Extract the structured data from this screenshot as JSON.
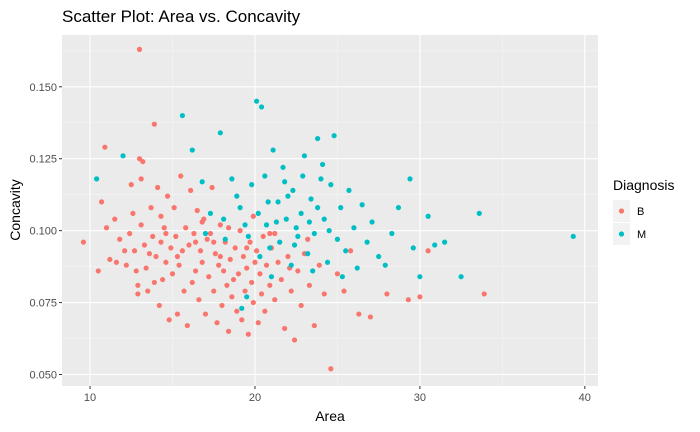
{
  "chart_data": {
    "type": "scatter",
    "title": "Scatter Plot: Area vs. Concavity",
    "xlabel": "Area",
    "ylabel": "Concavity",
    "xlim": [
      8.3,
      40.8
    ],
    "ylim": [
      0.046,
      0.168
    ],
    "x_ticks": [
      10,
      20,
      30,
      40
    ],
    "y_ticks": [
      0.05,
      0.075,
      0.1,
      0.125,
      0.15
    ],
    "x_tick_labels": [
      "10",
      "20",
      "30",
      "40"
    ],
    "y_tick_labels": [
      "0.050",
      "0.075",
      "0.100",
      "0.125",
      "0.150"
    ],
    "grid": true,
    "background": "#ebebeb",
    "legend": {
      "title": "Diagnosis",
      "placement": "right"
    },
    "series": [
      {
        "name": "B",
        "color": "#f8766d",
        "points": [
          [
            9.6,
            0.096
          ],
          [
            10.5,
            0.086
          ],
          [
            10.7,
            0.11
          ],
          [
            10.9,
            0.129
          ],
          [
            11.0,
            0.101
          ],
          [
            11.2,
            0.09
          ],
          [
            11.5,
            0.104
          ],
          [
            11.8,
            0.097
          ],
          [
            12.1,
            0.093
          ],
          [
            12.2,
            0.088
          ],
          [
            12.4,
            0.099
          ],
          [
            12.5,
            0.116
          ],
          [
            12.6,
            0.106
          ],
          [
            12.7,
            0.093
          ],
          [
            12.8,
            0.086
          ],
          [
            12.9,
            0.081
          ],
          [
            13.0,
            0.163
          ],
          [
            13.0,
            0.125
          ],
          [
            13.1,
            0.118
          ],
          [
            13.1,
            0.102
          ],
          [
            13.2,
            0.124
          ],
          [
            13.3,
            0.095
          ],
          [
            13.4,
            0.087
          ],
          [
            13.5,
            0.079
          ],
          [
            13.6,
            0.092
          ],
          [
            13.7,
            0.108
          ],
          [
            13.8,
            0.098
          ],
          [
            13.9,
            0.137
          ],
          [
            14.0,
            0.091
          ],
          [
            14.1,
            0.115
          ],
          [
            14.2,
            0.074
          ],
          [
            14.3,
            0.096
          ],
          [
            14.4,
            0.083
          ],
          [
            14.5,
            0.101
          ],
          [
            14.6,
            0.089
          ],
          [
            14.7,
            0.112
          ],
          [
            14.8,
            0.069
          ],
          [
            14.9,
            0.094
          ],
          [
            15.0,
            0.085
          ],
          [
            15.1,
            0.108
          ],
          [
            15.2,
            0.098
          ],
          [
            15.3,
            0.071
          ],
          [
            15.4,
            0.088
          ],
          [
            15.5,
            0.119
          ],
          [
            15.6,
            0.093
          ],
          [
            15.7,
            0.079
          ],
          [
            15.8,
            0.101
          ],
          [
            15.9,
            0.067
          ],
          [
            16.0,
            0.095
          ],
          [
            16.1,
            0.114
          ],
          [
            16.2,
            0.082
          ],
          [
            16.3,
            0.099
          ],
          [
            16.4,
            0.086
          ],
          [
            16.5,
            0.107
          ],
          [
            16.6,
            0.076
          ],
          [
            16.7,
            0.093
          ],
          [
            16.8,
            0.089
          ],
          [
            16.9,
            0.104
          ],
          [
            17.0,
            0.071
          ],
          [
            17.1,
            0.097
          ],
          [
            17.2,
            0.084
          ],
          [
            17.3,
            0.099
          ],
          [
            17.4,
            0.115
          ],
          [
            17.5,
            0.079
          ],
          [
            17.6,
            0.092
          ],
          [
            17.7,
            0.068
          ],
          [
            17.8,
            0.088
          ],
          [
            17.9,
            0.102
          ],
          [
            18.0,
            0.074
          ],
          [
            18.1,
            0.086
          ],
          [
            18.2,
            0.096
          ],
          [
            18.3,
            0.081
          ],
          [
            18.4,
            0.065
          ],
          [
            18.5,
            0.09
          ],
          [
            18.6,
            0.077
          ],
          [
            18.7,
            0.083
          ],
          [
            18.8,
            0.094
          ],
          [
            18.9,
            0.072
          ],
          [
            19.0,
            0.085
          ],
          [
            19.1,
            0.1
          ],
          [
            19.2,
            0.069
          ],
          [
            19.3,
            0.091
          ],
          [
            19.4,
            0.079
          ],
          [
            19.5,
            0.087
          ],
          [
            19.6,
            0.064
          ],
          [
            19.7,
            0.096
          ],
          [
            19.8,
            0.082
          ],
          [
            19.9,
            0.075
          ],
          [
            20.0,
            0.089
          ],
          [
            20.1,
            0.093
          ],
          [
            20.2,
            0.068
          ],
          [
            20.3,
            0.085
          ],
          [
            20.4,
            0.078
          ],
          [
            20.5,
            0.098
          ],
          [
            20.6,
            0.072
          ],
          [
            20.7,
            0.088
          ],
          [
            20.9,
            0.081
          ],
          [
            21.0,
            0.094
          ],
          [
            21.2,
            0.076
          ],
          [
            21.4,
            0.089
          ],
          [
            21.6,
            0.083
          ],
          [
            21.8,
            0.066
          ],
          [
            22.0,
            0.091
          ],
          [
            22.2,
            0.079
          ],
          [
            22.4,
            0.062
          ],
          [
            22.6,
            0.086
          ],
          [
            22.8,
            0.074
          ],
          [
            23.0,
            0.092
          ],
          [
            23.3,
            0.081
          ],
          [
            23.6,
            0.067
          ],
          [
            23.9,
            0.088
          ],
          [
            24.2,
            0.078
          ],
          [
            24.6,
            0.052
          ],
          [
            25.0,
            0.085
          ],
          [
            25.4,
            0.079
          ],
          [
            25.8,
            0.093
          ],
          [
            26.3,
            0.071
          ],
          [
            27.0,
            0.07
          ],
          [
            28.0,
            0.078
          ],
          [
            29.3,
            0.076
          ],
          [
            30.0,
            0.077
          ],
          [
            30.5,
            0.093
          ],
          [
            33.9,
            0.078
          ],
          [
            14.6,
            0.099
          ],
          [
            15.3,
            0.091
          ],
          [
            16.8,
            0.103
          ],
          [
            17.5,
            0.096
          ],
          [
            18.4,
            0.101
          ],
          [
            19.5,
            0.094
          ],
          [
            21.2,
            0.099
          ],
          [
            22.1,
            0.087
          ],
          [
            23.2,
            0.097
          ],
          [
            11.6,
            0.089
          ],
          [
            12.9,
            0.078
          ],
          [
            13.9,
            0.082
          ],
          [
            14.3,
            0.105
          ],
          [
            16.4,
            0.096
          ],
          [
            17.9,
            0.091
          ],
          [
            19.9,
            0.105
          ],
          [
            20.9,
            0.099
          ]
        ]
      },
      {
        "name": "M",
        "color": "#00bfc4",
        "points": [
          [
            10.4,
            0.118
          ],
          [
            12.0,
            0.126
          ],
          [
            15.6,
            0.14
          ],
          [
            16.2,
            0.128
          ],
          [
            17.3,
            0.106
          ],
          [
            17.9,
            0.134
          ],
          [
            18.6,
            0.118
          ],
          [
            19.1,
            0.108
          ],
          [
            19.6,
            0.098
          ],
          [
            20.1,
            0.145
          ],
          [
            20.4,
            0.143
          ],
          [
            20.6,
            0.119
          ],
          [
            20.7,
            0.102
          ],
          [
            20.9,
            0.094
          ],
          [
            21.1,
            0.128
          ],
          [
            21.4,
            0.11
          ],
          [
            21.5,
            0.096
          ],
          [
            21.7,
            0.122
          ],
          [
            21.9,
            0.104
          ],
          [
            22.2,
            0.088
          ],
          [
            22.3,
            0.114
          ],
          [
            22.6,
            0.098
          ],
          [
            22.8,
            0.106
          ],
          [
            23.0,
            0.126
          ],
          [
            23.2,
            0.092
          ],
          [
            23.4,
            0.111
          ],
          [
            23.6,
            0.099
          ],
          [
            23.8,
            0.132
          ],
          [
            24.0,
            0.118
          ],
          [
            24.2,
            0.104
          ],
          [
            24.4,
            0.089
          ],
          [
            24.6,
            0.116
          ],
          [
            24.8,
            0.133
          ],
          [
            25.0,
            0.097
          ],
          [
            25.2,
            0.108
          ],
          [
            25.5,
            0.093
          ],
          [
            25.7,
            0.114
          ],
          [
            26.0,
            0.101
          ],
          [
            26.2,
            0.087
          ],
          [
            26.5,
            0.109
          ],
          [
            26.8,
            0.096
          ],
          [
            27.1,
            0.103
          ],
          [
            27.5,
            0.091
          ],
          [
            27.9,
            0.088
          ],
          [
            28.3,
            0.099
          ],
          [
            28.7,
            0.108
          ],
          [
            29.4,
            0.118
          ],
          [
            29.6,
            0.094
          ],
          [
            30.0,
            0.084
          ],
          [
            30.5,
            0.105
          ],
          [
            30.9,
            0.095
          ],
          [
            31.5,
            0.096
          ],
          [
            32.5,
            0.084
          ],
          [
            33.6,
            0.106
          ],
          [
            39.3,
            0.098
          ],
          [
            19.2,
            0.073
          ],
          [
            19.5,
            0.077
          ],
          [
            20.3,
            0.091
          ],
          [
            21.0,
            0.084
          ],
          [
            22.0,
            0.112
          ],
          [
            22.5,
            0.101
          ],
          [
            23.5,
            0.086
          ],
          [
            24.5,
            0.1
          ],
          [
            25.3,
            0.084
          ],
          [
            17.0,
            0.099
          ],
          [
            18.2,
            0.097
          ],
          [
            18.9,
            0.112
          ],
          [
            19.8,
            0.116
          ],
          [
            20.8,
            0.11
          ],
          [
            21.8,
            0.117
          ],
          [
            22.9,
            0.119
          ],
          [
            23.8,
            0.108
          ],
          [
            24.1,
            0.123
          ],
          [
            16.8,
            0.117
          ],
          [
            18.1,
            0.104
          ],
          [
            19.4,
            0.102
          ],
          [
            20.2,
            0.106
          ],
          [
            21.3,
            0.103
          ],
          [
            22.4,
            0.095
          ],
          [
            23.3,
            0.103
          ]
        ]
      }
    ]
  }
}
